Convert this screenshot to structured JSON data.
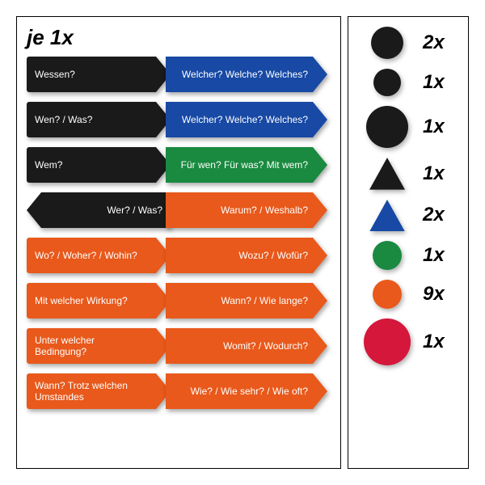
{
  "heading": "je 1x",
  "colors": {
    "black": "#1a1a1a",
    "blue": "#1749a5",
    "green": "#198a3f",
    "orange": "#e8591b",
    "red": "#d4173a"
  },
  "rows": [
    {
      "left": {
        "text": "Wessen?",
        "color": "black",
        "dir": "right"
      },
      "right": {
        "text": "Welcher? Welche? Welches?",
        "color": "blue",
        "dir": "right"
      }
    },
    {
      "left": {
        "text": "Wen? / Was?",
        "color": "black",
        "dir": "right"
      },
      "right": {
        "text": "Welcher? Welche? Welches?",
        "color": "blue",
        "dir": "right"
      }
    },
    {
      "left": {
        "text": "Wem?",
        "color": "black",
        "dir": "right"
      },
      "right": {
        "text": "Für wen? Für was? Mit wem?",
        "color": "green",
        "dir": "right"
      }
    },
    {
      "left": {
        "text": "Wer? / Was?",
        "color": "black",
        "dir": "left"
      },
      "right": {
        "text": "Warum? / Weshalb?",
        "color": "orange",
        "dir": "right"
      }
    },
    {
      "left": {
        "text": "Wo? / Woher? / Wohin?",
        "color": "orange",
        "dir": "right"
      },
      "right": {
        "text": "Wozu? / Wofür?",
        "color": "orange",
        "dir": "right"
      }
    },
    {
      "left": {
        "text": "Mit welcher Wirkung?",
        "color": "orange",
        "dir": "right"
      },
      "right": {
        "text": "Wann? / Wie lange?",
        "color": "orange",
        "dir": "right"
      }
    },
    {
      "left": {
        "text": "Unter welcher Bedingung?",
        "color": "orange",
        "dir": "right"
      },
      "right": {
        "text": "Womit? / Wodurch?",
        "color": "orange",
        "dir": "right"
      }
    },
    {
      "left": {
        "text": "Wann? Trotz welchen Umstandes",
        "color": "orange",
        "dir": "right"
      },
      "right": {
        "text": "Wie? / Wie sehr? / Wie oft?",
        "color": "orange",
        "dir": "right"
      }
    }
  ],
  "legend": [
    {
      "shape": "circle",
      "color": "black",
      "size": 40,
      "count": "2x"
    },
    {
      "shape": "circle",
      "color": "black",
      "size": 34,
      "count": "1x"
    },
    {
      "shape": "circle",
      "color": "black",
      "size": 52,
      "count": "1x"
    },
    {
      "shape": "triangle",
      "color": "black",
      "size": 44,
      "count": "1x"
    },
    {
      "shape": "triangle",
      "color": "blue",
      "size": 44,
      "count": "2x"
    },
    {
      "shape": "circle",
      "color": "green",
      "size": 36,
      "count": "1x"
    },
    {
      "shape": "circle",
      "color": "orange",
      "size": 36,
      "count": "9x"
    },
    {
      "shape": "circle",
      "color": "red",
      "size": 58,
      "count": "1x"
    }
  ]
}
